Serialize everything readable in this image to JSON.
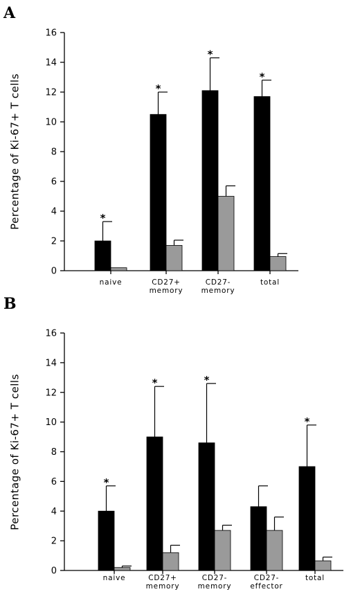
{
  "chart_data": [
    {
      "type": "bar",
      "panel": "A",
      "ylabel": "Percentage of Ki-67+ T cells",
      "ylim": [
        0,
        16
      ],
      "yticks": [
        0,
        2,
        4,
        6,
        8,
        10,
        12,
        14,
        16
      ],
      "categories": [
        [
          "naive"
        ],
        [
          "CD27+",
          "memory"
        ],
        [
          "CD27-",
          "memory"
        ],
        [
          "total"
        ]
      ],
      "series": [
        {
          "color": "#000000",
          "values": [
            2.0,
            10.5,
            12.1,
            11.7
          ],
          "errors": [
            1.3,
            1.5,
            2.2,
            1.1
          ],
          "markers": [
            "*",
            "*",
            "*",
            "*"
          ]
        },
        {
          "color": "#9a9a9a",
          "values": [
            0.2,
            1.7,
            5.0,
            0.95
          ],
          "errors": [
            0,
            0.35,
            0.7,
            0.2
          ],
          "markers": [
            "",
            "",
            "",
            ""
          ]
        }
      ]
    },
    {
      "type": "bar",
      "panel": "B",
      "ylabel": "Percentage of Ki-67+ T cells",
      "ylim": [
        0,
        16
      ],
      "yticks": [
        0,
        2,
        4,
        6,
        8,
        10,
        12,
        14,
        16
      ],
      "categories": [
        [
          "naive"
        ],
        [
          "CD27+",
          "memory"
        ],
        [
          "CD27-",
          "memory"
        ],
        [
          "CD27-",
          "effector"
        ],
        [
          "total"
        ]
      ],
      "series": [
        {
          "color": "#000000",
          "values": [
            4.0,
            9.0,
            8.6,
            4.3,
            7.0
          ],
          "errors": [
            1.7,
            3.4,
            4.0,
            1.4,
            2.8
          ],
          "markers": [
            "*",
            "*",
            "*",
            "",
            "*"
          ]
        },
        {
          "color": "#9a9a9a",
          "values": [
            0.2,
            1.2,
            2.7,
            2.7,
            0.65
          ],
          "errors": [
            0.1,
            0.5,
            0.35,
            0.9,
            0.25
          ],
          "markers": [
            "",
            "",
            "",
            "",
            ""
          ]
        }
      ]
    }
  ]
}
